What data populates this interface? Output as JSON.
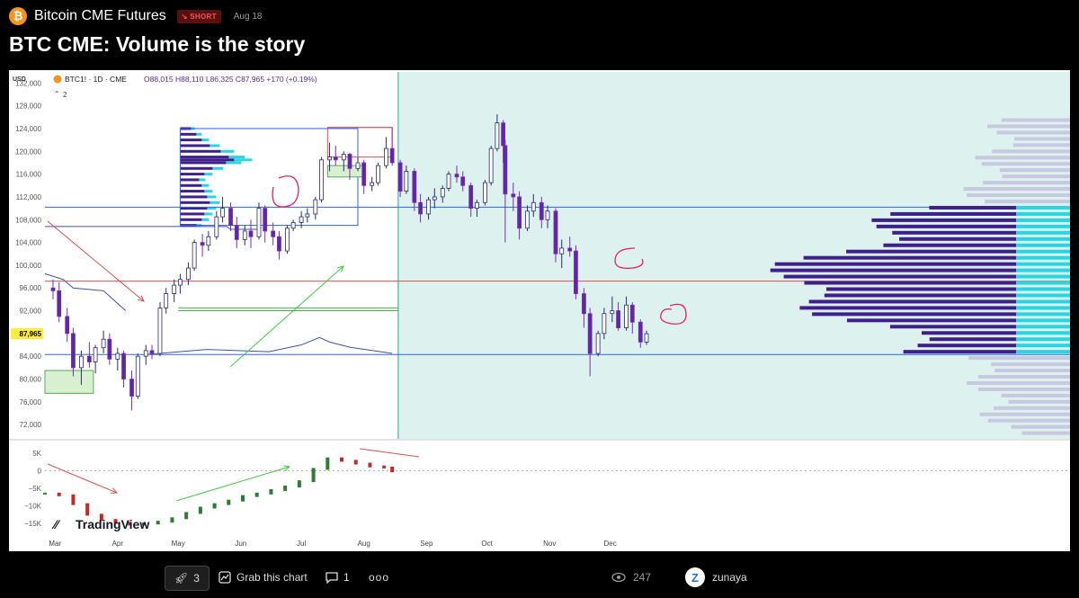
{
  "header": {
    "symbol_name": "Bitcoin CME Futures",
    "badge": "SHORT",
    "date": "Aug 18",
    "logo_glyph": "₿"
  },
  "title": "BTC CME: Volume is the story",
  "chart_data": {
    "type": "candlestick",
    "legend": {
      "ticker": "BTC1! · 1D · CME",
      "ohlc": "O88,015 H88,110 L86,325 C87,965 +170 (+0.19%)",
      "layers": "2"
    },
    "currency": "USD",
    "price_axis": {
      "ticks": [
        "132,000",
        "128,000",
        "124,000",
        "120,000",
        "116,000",
        "112,000",
        "108,000",
        "104,000",
        "100,000",
        "96,000",
        "92,000",
        "88,000",
        "84,000",
        "80,000",
        "76,000",
        "72,000"
      ],
      "range": [
        69500,
        133000
      ]
    },
    "last_price_label": "87,965",
    "x_axis": {
      "ticks": [
        "Mar",
        "Apr",
        "May",
        "Jun",
        "Jul",
        "Aug",
        "Sep",
        "Oct",
        "Nov",
        "Dec"
      ],
      "start": "2025-02-24",
      "end": "2025-12-23"
    },
    "projection_start": "2025-08-18",
    "candles": [
      [
        "2025-02-28",
        96000,
        97500,
        94000,
        95500
      ],
      [
        "2025-03-03",
        95500,
        97000,
        90000,
        91000
      ],
      [
        "2025-03-07",
        91000,
        92500,
        86500,
        88000
      ],
      [
        "2025-03-10",
        88000,
        89000,
        80500,
        82000
      ],
      [
        "2025-03-14",
        82000,
        85000,
        79000,
        84000
      ],
      [
        "2025-03-18",
        84000,
        86500,
        82000,
        83000
      ],
      [
        "2025-03-21",
        83000,
        86000,
        81000,
        85500
      ],
      [
        "2025-03-25",
        85500,
        88500,
        84500,
        87000
      ],
      [
        "2025-03-28",
        87000,
        88000,
        82500,
        83500
      ],
      [
        "2025-04-01",
        83500,
        85500,
        81500,
        84500
      ],
      [
        "2025-04-04",
        84500,
        85000,
        78500,
        80000
      ],
      [
        "2025-04-08",
        80000,
        81500,
        74500,
        77000
      ],
      [
        "2025-04-11",
        77000,
        84500,
        76500,
        84000
      ],
      [
        "2025-04-15",
        84000,
        86000,
        82500,
        85000
      ],
      [
        "2025-04-18",
        85000,
        86000,
        83500,
        84500
      ],
      [
        "2025-04-22",
        84500,
        93500,
        84000,
        92500
      ],
      [
        "2025-04-25",
        92500,
        96000,
        91500,
        95000
      ],
      [
        "2025-04-29",
        95000,
        97500,
        93500,
        96500
      ],
      [
        "2025-05-02",
        96500,
        98500,
        95000,
        97500
      ],
      [
        "2025-05-06",
        97500,
        100500,
        96500,
        99500
      ],
      [
        "2025-05-09",
        99500,
        104500,
        99000,
        104000
      ],
      [
        "2025-05-13",
        104000,
        105500,
        101500,
        103500
      ],
      [
        "2025-05-16",
        103500,
        106000,
        102500,
        105000
      ],
      [
        "2025-05-20",
        105000,
        109500,
        104500,
        108500
      ],
      [
        "2025-05-23",
        108500,
        112000,
        107500,
        110000
      ],
      [
        "2025-05-27",
        110000,
        111000,
        106000,
        107000
      ],
      [
        "2025-05-30",
        107000,
        108500,
        103000,
        104500
      ],
      [
        "2025-06-03",
        104500,
        107000,
        103500,
        106000
      ],
      [
        "2025-06-06",
        106000,
        108000,
        103000,
        105000
      ],
      [
        "2025-06-10",
        105000,
        111000,
        104500,
        110000
      ],
      [
        "2025-06-13",
        110000,
        110500,
        104000,
        106000
      ],
      [
        "2025-06-17",
        106000,
        107500,
        103500,
        105000
      ],
      [
        "2025-06-20",
        105000,
        106000,
        101000,
        102500
      ],
      [
        "2025-06-24",
        102500,
        107000,
        102000,
        106500
      ],
      [
        "2025-06-27",
        106500,
        108000,
        106000,
        107500
      ],
      [
        "2025-07-01",
        107500,
        109500,
        106500,
        108500
      ],
      [
        "2025-07-04",
        108500,
        110000,
        107500,
        109000
      ],
      [
        "2025-07-08",
        109000,
        112000,
        108000,
        111500
      ],
      [
        "2025-07-11",
        111500,
        119000,
        111000,
        118500
      ],
      [
        "2025-07-15",
        118500,
        121500,
        116500,
        119000
      ],
      [
        "2025-07-18",
        119000,
        121000,
        117500,
        118500
      ],
      [
        "2025-07-22",
        118500,
        120000,
        116500,
        119500
      ],
      [
        "2025-07-25",
        119500,
        119800,
        115000,
        117000
      ],
      [
        "2025-07-29",
        117000,
        119000,
        116500,
        118000
      ],
      [
        "2025-08-01",
        118000,
        118500,
        112500,
        114000
      ],
      [
        "2025-08-05",
        114000,
        115500,
        113000,
        114500
      ],
      [
        "2025-08-08",
        114500,
        118000,
        114000,
        117500
      ],
      [
        "2025-08-12",
        117500,
        122500,
        117000,
        120500
      ],
      [
        "2025-08-15",
        120500,
        124200,
        117500,
        118000
      ],
      [
        "2025-08-19",
        118000,
        118500,
        112000,
        113000
      ],
      [
        "2025-08-22",
        113000,
        117500,
        112500,
        116500
      ],
      [
        "2025-08-26",
        116500,
        117000,
        109500,
        111000
      ],
      [
        "2025-08-29",
        111000,
        112500,
        107500,
        109000
      ],
      [
        "2025-09-02",
        109000,
        112000,
        108000,
        111500
      ],
      [
        "2025-09-05",
        111500,
        113500,
        110000,
        112000
      ],
      [
        "2025-09-09",
        112000,
        114000,
        111000,
        113500
      ],
      [
        "2025-09-12",
        113500,
        116500,
        113000,
        116000
      ],
      [
        "2025-09-16",
        116000,
        117500,
        114500,
        115500
      ],
      [
        "2025-09-19",
        115500,
        116500,
        113000,
        114000
      ],
      [
        "2025-09-23",
        114000,
        114500,
        108500,
        110000
      ],
      [
        "2025-09-26",
        110000,
        111500,
        108500,
        111000
      ],
      [
        "2025-09-30",
        111000,
        115000,
        110500,
        114500
      ],
      [
        "2025-10-03",
        114500,
        121000,
        114000,
        120500
      ],
      [
        "2025-10-06",
        120500,
        126500,
        120000,
        125000
      ],
      [
        "2025-10-09",
        125000,
        125500,
        118000,
        121000
      ],
      [
        "2025-10-10",
        121000,
        122000,
        104000,
        112500
      ],
      [
        "2025-10-14",
        112500,
        114500,
        109500,
        112000
      ],
      [
        "2025-10-17",
        112000,
        113000,
        104500,
        106500
      ],
      [
        "2025-10-21",
        106500,
        110500,
        106000,
        109500
      ],
      [
        "2025-10-24",
        109500,
        112500,
        108500,
        111000
      ],
      [
        "2025-10-28",
        111000,
        112000,
        106500,
        108000
      ],
      [
        "2025-10-31",
        108000,
        110500,
        106500,
        109500
      ],
      [
        "2025-11-04",
        109500,
        110000,
        100500,
        102000
      ],
      [
        "2025-11-07",
        102000,
        104500,
        99500,
        103000
      ],
      [
        "2025-11-11",
        103000,
        105000,
        101500,
        102500
      ],
      [
        "2025-11-14",
        102500,
        103500,
        94000,
        95000
      ],
      [
        "2025-11-18",
        95000,
        96000,
        89000,
        91500
      ],
      [
        "2025-11-21",
        91500,
        92500,
        80500,
        84500
      ],
      [
        "2025-11-25",
        84500,
        88500,
        84000,
        88000
      ],
      [
        "2025-11-28",
        88000,
        92500,
        87000,
        91500
      ],
      [
        "2025-12-02",
        91500,
        94500,
        90000,
        92000
      ],
      [
        "2025-12-05",
        92000,
        93500,
        88500,
        89000
      ],
      [
        "2025-12-09",
        89000,
        94500,
        88500,
        93000
      ],
      [
        "2025-12-12",
        93000,
        93500,
        88000,
        90000
      ],
      [
        "2025-12-16",
        90000,
        90500,
        85500,
        86500
      ],
      [
        "2025-12-19",
        86500,
        88500,
        86000,
        87965
      ]
    ],
    "horizontal_lines": [
      {
        "price": 110200,
        "color": "#2962ff"
      },
      {
        "price": 97200,
        "color": "#e05050"
      },
      {
        "price": 84300,
        "color": "#2962ff"
      }
    ],
    "volume_profile_right": {
      "poc_price": 97200,
      "rows_price_range": [
        84300,
        110200
      ]
    },
    "cvd_pane": {
      "axis_ticks": [
        "5K",
        "0",
        "−5K",
        "−10K",
        "−15K"
      ],
      "range": [
        -17000,
        7500
      ],
      "points": [
        [
          "2025-02-24",
          -6500
        ],
        [
          "2025-03-03",
          -7000
        ],
        [
          "2025-03-10",
          -9500
        ],
        [
          "2025-03-17",
          -12500
        ],
        [
          "2025-03-24",
          -14000
        ],
        [
          "2025-03-31",
          -14800
        ],
        [
          "2025-04-07",
          -15300
        ],
        [
          "2025-04-14",
          -15000
        ],
        [
          "2025-04-21",
          -14500
        ],
        [
          "2025-04-28",
          -13500
        ],
        [
          "2025-05-05",
          -12000
        ],
        [
          "2025-05-12",
          -10500
        ],
        [
          "2025-05-19",
          -9500
        ],
        [
          "2025-05-26",
          -8500
        ],
        [
          "2025-06-02",
          -7200
        ],
        [
          "2025-06-09",
          -6500
        ],
        [
          "2025-06-16",
          -5500
        ],
        [
          "2025-06-23",
          -4500
        ],
        [
          "2025-06-30",
          -3000
        ],
        [
          "2025-07-07",
          500
        ],
        [
          "2025-07-14",
          3500
        ],
        [
          "2025-07-21",
          2800
        ],
        [
          "2025-07-28",
          2000
        ],
        [
          "2025-08-04",
          1200
        ],
        [
          "2025-08-11",
          900
        ],
        [
          "2025-08-15",
          -200
        ]
      ]
    },
    "watermark": "TradingView"
  },
  "footer": {
    "boost_count": "3",
    "grab_label": "Grab this chart",
    "comments": "1",
    "more": "ooo",
    "views": "247",
    "user": "zunaya",
    "avatar_letter": "Z"
  }
}
